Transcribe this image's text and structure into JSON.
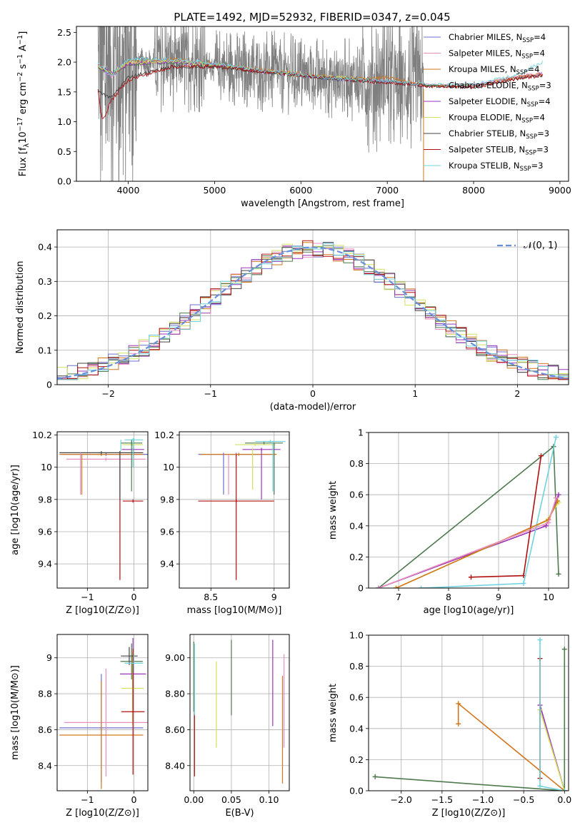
{
  "figure_title": "PLATE=1492, MJD=52932, FIBERID=0347, z=0.045",
  "colors": {
    "chabrier_miles": "#6f6fcf",
    "salpeter_miles": "#e88fc0",
    "kroupa_miles": "#d2771e",
    "chabrier_elodie": "#4e7a4e",
    "salpeter_elodie": "#9a34b8",
    "kroupa_elodie": "#d2e060",
    "chabrier_stelib": "#444444",
    "salpeter_stelib": "#b01010",
    "kroupa_stelib": "#6fd3dd",
    "data": "#7f7f7f",
    "normal": "#6a8fdc"
  },
  "chart_data": [
    {
      "type": "line",
      "panel": "spectrum",
      "xlabel": "wavelength [Angstrom, rest frame]",
      "ylabel": "Flux [f_λ 10^{-17} erg cm^{-2} s^{-1} A^{-1}]",
      "xlim": [
        3400,
        9100
      ],
      "ylim": [
        0,
        2.6
      ],
      "xticks": [
        4000,
        5000,
        6000,
        7000,
        8000,
        9000
      ],
      "yticks": [
        0.0,
        0.5,
        1.0,
        1.5,
        2.0,
        2.5
      ],
      "grid": false,
      "legend_position": "right",
      "legend": [
        {
          "name": "Chabrier MILES, N",
          "sub": "SSP",
          "tail": "=4",
          "color_key": "chabrier_miles"
        },
        {
          "name": "Salpeter MILES, N",
          "sub": "SSP",
          "tail": "=4",
          "color_key": "salpeter_miles"
        },
        {
          "name": "Kroupa MILES, N",
          "sub": "SSP",
          "tail": "=4",
          "color_key": "kroupa_miles"
        },
        {
          "name": "Chabrier ELODIE, N",
          "sub": "SSP",
          "tail": "=3",
          "color_key": "chabrier_elodie"
        },
        {
          "name": "Salpeter ELODIE, N",
          "sub": "SSP",
          "tail": "=4",
          "color_key": "salpeter_elodie"
        },
        {
          "name": "Kroupa ELODIE, N",
          "sub": "SSP",
          "tail": "=4",
          "color_key": "kroupa_elodie"
        },
        {
          "name": "Chabrier STELIB, N",
          "sub": "SSP",
          "tail": "=3",
          "color_key": "chabrier_stelib"
        },
        {
          "name": "Salpeter STELIB, N",
          "sub": "SSP",
          "tail": "=3",
          "color_key": "salpeter_stelib"
        },
        {
          "name": "Kroupa STELIB, N",
          "sub": "SSP",
          "tail": "=3",
          "color_key": "kroupa_stelib"
        }
      ],
      "data_range": [
        3650,
        7420
      ],
      "continuum": {
        "x": [
          3650,
          3800,
          4000,
          4200,
          4500,
          4800,
          5000,
          5200,
          5500,
          5800,
          6000,
          6200,
          6500,
          6800,
          7000,
          7200,
          7400
        ],
        "y": [
          1.85,
          1.85,
          1.95,
          2.0,
          2.0,
          2.0,
          1.92,
          1.88,
          1.85,
          1.82,
          1.78,
          1.75,
          1.72,
          1.68,
          1.7,
          1.6,
          1.55
        ]
      },
      "models": [
        {
          "key": "chabrier_miles",
          "x": [
            3650,
            3800,
            4000,
            4500,
            5000,
            5500,
            6000,
            6500,
            7000,
            7500,
            8000,
            8500,
            8800
          ],
          "y": [
            1.95,
            1.75,
            1.98,
            2.02,
            1.95,
            1.86,
            1.78,
            1.7,
            1.67,
            1.6,
            1.6,
            1.75,
            1.8
          ]
        },
        {
          "key": "salpeter_miles",
          "x": [
            3650,
            3800,
            4000,
            4500,
            5000,
            5500,
            6000,
            6500,
            7000,
            7500,
            8000,
            8500,
            8800
          ],
          "y": [
            1.96,
            1.76,
            1.97,
            2.03,
            1.96,
            1.87,
            1.79,
            1.71,
            1.68,
            1.61,
            1.61,
            1.76,
            1.81
          ]
        },
        {
          "key": "kroupa_miles",
          "x": [
            3650,
            3800,
            4000,
            4500,
            5000,
            5500,
            6000,
            6500,
            7000,
            7500,
            8000,
            8500,
            8800
          ],
          "y": [
            1.97,
            1.78,
            2.0,
            2.05,
            1.97,
            1.88,
            1.8,
            1.72,
            1.74,
            1.6,
            1.6,
            1.75,
            1.8
          ]
        },
        {
          "key": "chabrier_elodie",
          "x": [
            3650,
            3800,
            4000,
            4500,
            5000,
            5500,
            6000,
            6500,
            6800
          ],
          "y": [
            1.92,
            1.8,
            1.96,
            2.0,
            1.94,
            1.84,
            1.77,
            1.72,
            1.7
          ]
        },
        {
          "key": "salpeter_elodie",
          "x": [
            3650,
            3800,
            4000,
            4500,
            5000,
            5500,
            6000,
            6500,
            6800
          ],
          "y": [
            1.94,
            1.82,
            1.97,
            2.01,
            1.95,
            1.85,
            1.78,
            1.73,
            1.7
          ]
        },
        {
          "key": "kroupa_elodie",
          "x": [
            3650,
            3800,
            4000,
            4500,
            5000,
            5500,
            6000,
            6500,
            6800
          ],
          "y": [
            1.93,
            1.81,
            1.99,
            2.02,
            1.95,
            1.86,
            1.78,
            1.74,
            1.69
          ]
        },
        {
          "key": "chabrier_stelib",
          "x": [
            3650,
            3800,
            4000,
            4500,
            5000,
            5500,
            6000,
            6500,
            7000,
            7500,
            8000,
            8500,
            8800
          ],
          "y": [
            1.5,
            1.4,
            1.75,
            1.92,
            1.92,
            1.85,
            1.78,
            1.7,
            1.66,
            1.6,
            1.58,
            1.72,
            1.78
          ]
        },
        {
          "key": "salpeter_stelib",
          "x": [
            3650,
            3700,
            3800,
            4000,
            4500,
            5000,
            5500,
            6000,
            6500,
            7000,
            7500,
            8000,
            8500,
            8800
          ],
          "y": [
            1.55,
            1.0,
            1.35,
            1.7,
            1.92,
            1.93,
            1.85,
            1.78,
            1.71,
            1.66,
            1.6,
            1.58,
            1.72,
            1.78
          ]
        },
        {
          "key": "kroupa_stelib",
          "x": [
            3650,
            3800,
            4000,
            4500,
            5000,
            5500,
            6000,
            6500,
            7000,
            7500,
            8000,
            8500,
            8800
          ],
          "y": [
            1.98,
            1.78,
            2.05,
            2.05,
            1.98,
            1.87,
            1.79,
            1.72,
            1.68,
            1.62,
            1.62,
            1.78,
            2.0
          ]
        }
      ]
    },
    {
      "type": "histogram",
      "panel": "residuals",
      "xlabel": "(data-model)/error",
      "ylabel": "Normed distribution",
      "xlim": [
        -2.5,
        2.5
      ],
      "ylim": [
        0,
        0.45
      ],
      "xticks": [
        -2,
        -1,
        0,
        1,
        2
      ],
      "yticks": [
        0.0,
        0.1,
        0.2,
        0.3,
        0.4
      ],
      "grid": true,
      "legend_position": "top-right",
      "legend": [
        {
          "label": "𝒩(0, 1)",
          "style": "dashed",
          "color_key": "normal"
        }
      ],
      "bin_width": 0.1
    },
    {
      "type": "errorbar",
      "panel": "age_vs_Z",
      "xlabel": "Z [log10(Z/Z⊙)]",
      "ylabel": "age [log10(age/yr)]",
      "xlim": [
        -1.65,
        0.3
      ],
      "ylim": [
        9.25,
        10.22
      ],
      "xticks": [
        -1,
        0
      ],
      "yticks": [
        9.4,
        9.6,
        9.8,
        10.0,
        10.2
      ],
      "grid": true,
      "points": [
        {
          "key": "chabrier_miles",
          "x": -0.6,
          "xerr": 0.95,
          "y": 10.08,
          "yerr": 0.01
        },
        {
          "key": "salpeter_miles",
          "x": -0.6,
          "xerr": 0.85,
          "y": 10.05,
          "yerr": 0.01
        },
        {
          "key": "kroupa_miles",
          "x": -0.7,
          "xerr": 0.9,
          "y": 10.08,
          "yerr": 0.01
        },
        {
          "key": "chabrier_elodie",
          "x": -0.05,
          "xerr": 0.23,
          "y": 10.15,
          "yerr": 0.01
        },
        {
          "key": "salpeter_elodie",
          "x": -0.02,
          "xerr": 0.24,
          "y": 10.11,
          "yerr": 0.01
        },
        {
          "key": "kroupa_elodie",
          "x": -0.03,
          "xerr": 0.22,
          "y": 10.14,
          "yerr": 0.01
        },
        {
          "key": "chabrier_stelib",
          "x": -0.7,
          "xerr": 0.9,
          "y": 10.09,
          "yerr": 0.01
        },
        {
          "key": "salpeter_stelib",
          "x": -0.02,
          "xerr": 0.22,
          "y": 9.79,
          "yerr": 0.01
        },
        {
          "key": "kroupa_stelib",
          "x": 0.0,
          "xerr": 0.2,
          "y": 10.17,
          "yerr": 0.01
        }
      ]
    },
    {
      "type": "errorbar",
      "panel": "age_vs_mass",
      "xlabel": "mass [log10(M/M⊙)]",
      "ylabel": "",
      "xlim": [
        8.25,
        9.12
      ],
      "ylim": [
        9.25,
        10.22
      ],
      "xticks": [
        8.5,
        9.0
      ],
      "yticks": [
        9.4,
        9.6,
        9.8,
        10.0,
        10.2
      ],
      "grid": true,
      "points": [
        {
          "key": "chabrier_miles",
          "x": 8.7,
          "xerr": 0.3,
          "y": 10.08,
          "yerr": 0.01
        },
        {
          "key": "kroupa_miles",
          "x": 8.72,
          "xerr": 0.3,
          "y": 10.08,
          "yerr": 0.01
        },
        {
          "key": "chabrier_elodie",
          "x": 8.92,
          "xerr": 0.15,
          "y": 10.15,
          "yerr": 0.01
        },
        {
          "key": "salpeter_elodie",
          "x": 8.9,
          "xerr": 0.15,
          "y": 10.11,
          "yerr": 0.01
        },
        {
          "key": "kroupa_elodie",
          "x": 8.85,
          "xerr": 0.16,
          "y": 10.14,
          "yerr": 0.01
        },
        {
          "key": "salpeter_stelib",
          "x": 8.7,
          "xerr": 0.3,
          "y": 9.79,
          "yerr": 0.01
        },
        {
          "key": "kroupa_stelib",
          "x": 8.97,
          "xerr": 0.12,
          "y": 10.16,
          "yerr": 0.01
        }
      ]
    },
    {
      "type": "line",
      "panel": "mass_weight_vs_age",
      "xlabel": "age [log10(age/yr)]",
      "ylabel": "mass weight",
      "xlim": [
        6.4,
        10.4
      ],
      "ylim": [
        0,
        1
      ],
      "xticks": [
        7,
        8,
        9,
        10
      ],
      "yticks": [
        0.0,
        0.2,
        0.4,
        0.6,
        0.8,
        1.0
      ],
      "grid": true,
      "series": [
        {
          "key": "chabrier_elodie",
          "x": [
            6.6,
            10.1,
            10.2
          ],
          "y": [
            0.0,
            0.91,
            0.09
          ]
        },
        {
          "key": "salpeter_elodie",
          "x": [
            6.6,
            9.95,
            10.2
          ],
          "y": [
            0.0,
            0.4,
            0.6
          ]
        },
        {
          "key": "kroupa_elodie",
          "x": [
            6.95,
            9.95,
            10.2
          ],
          "y": [
            0.0,
            0.43,
            0.55
          ]
        },
        {
          "key": "salpeter_stelib",
          "x": [
            8.45,
            9.5,
            9.85
          ],
          "y": [
            0.07,
            0.08,
            0.85
          ]
        },
        {
          "key": "kroupa_stelib",
          "x": [
            7.45,
            9.5,
            10.15
          ],
          "y": [
            0.0,
            0.03,
            0.97
          ]
        },
        {
          "key": "kroupa_miles",
          "x": [
            6.95,
            10.0,
            10.18
          ],
          "y": [
            0.0,
            0.44,
            0.56
          ]
        },
        {
          "key": "salpeter_miles",
          "x": [
            6.6,
            10.0,
            10.15
          ],
          "y": [
            0.0,
            0.42,
            0.58
          ]
        }
      ]
    },
    {
      "type": "errorbar",
      "panel": "mass_vs_Z",
      "xlabel": "Z [log10(Z/Z⊙)]",
      "ylabel": "mass [log10(M/M⊙)]",
      "xlim": [
        -1.65,
        0.3
      ],
      "ylim": [
        8.26,
        9.13
      ],
      "xticks": [
        -1,
        0
      ],
      "yticks": [
        8.4,
        8.6,
        8.8,
        9.0
      ],
      "grid": true,
      "points": [
        {
          "key": "chabrier_miles",
          "x": -0.7,
          "xerr": 0.9,
          "y": 8.61,
          "yerr": 0.3
        },
        {
          "key": "salpeter_miles",
          "x": -0.6,
          "xerr": 0.9,
          "y": 8.64,
          "yerr": 0.3
        },
        {
          "key": "kroupa_miles",
          "x": -0.7,
          "xerr": 0.9,
          "y": 8.57,
          "yerr": 0.3
        },
        {
          "key": "chabrier_elodie",
          "x": -0.05,
          "xerr": 0.24,
          "y": 8.98,
          "yerr": 0.1
        },
        {
          "key": "salpeter_elodie",
          "x": -0.02,
          "xerr": 0.28,
          "y": 8.91,
          "yerr": 0.2
        },
        {
          "key": "kroupa_elodie",
          "x": -0.03,
          "xerr": 0.24,
          "y": 8.83,
          "yerr": 0.2
        },
        {
          "key": "chabrier_stelib",
          "x": -0.1,
          "xerr": 0.18,
          "y": 9.01,
          "yerr": 0.05
        },
        {
          "key": "salpeter_stelib",
          "x": -0.02,
          "xerr": 0.25,
          "y": 8.7,
          "yerr": 0.35
        },
        {
          "key": "kroupa_stelib",
          "x": 0.0,
          "xerr": 0.2,
          "y": 8.97,
          "yerr": 0.05
        }
      ]
    },
    {
      "type": "errorbar",
      "panel": "mass_vs_EBV",
      "xlabel": "E(B-V)",
      "ylabel": "",
      "xlim": [
        -0.005,
        0.127
      ],
      "ylim": [
        8.26,
        9.13
      ],
      "xticks": [
        0.0,
        0.05,
        0.1
      ],
      "yticks": [
        8.4,
        8.6,
        8.8,
        9.0
      ],
      "grid": true,
      "points": [
        {
          "key": "salpeter_stelib",
          "x": 0.001,
          "yerr": [
            8.34,
            8.69
          ]
        },
        {
          "key": "chabrier_elodie",
          "x": 0.0,
          "yerr": [
            8.7,
            9.09
          ]
        },
        {
          "key": "kroupa_elodie",
          "x": 0.03,
          "yerr": [
            8.5,
            8.98
          ]
        },
        {
          "key": "chabrier_elodie",
          "x": 0.05,
          "yerr": [
            8.68,
            9.1
          ]
        },
        {
          "key": "salpeter_elodie",
          "x": 0.105,
          "yerr": [
            8.62,
            9.1
          ]
        },
        {
          "key": "kroupa_miles",
          "x": 0.118,
          "yerr": [
            8.3,
            8.9
          ]
        },
        {
          "key": "salpeter_miles",
          "x": 0.12,
          "yerr": [
            8.5,
            9.02
          ]
        },
        {
          "key": "kroupa_stelib",
          "x": 0.001,
          "yerr": [
            8.68,
            9.08
          ]
        }
      ]
    },
    {
      "type": "line",
      "panel": "mass_weight_vs_Z",
      "xlabel": "Z [log10(Z/Z⊙)]",
      "ylabel": "mass weight",
      "xlim": [
        -2.4,
        0.05
      ],
      "ylim": [
        0,
        1
      ],
      "xticks": [
        -2.0,
        -1.5,
        -1.0,
        -0.5,
        0.0
      ],
      "yticks": [
        0.0,
        0.2,
        0.4,
        0.6,
        0.8,
        1.0
      ],
      "grid": true,
      "series": [
        {
          "key": "chabrier_elodie",
          "x": [
            -2.32,
            0.0,
            0.0
          ],
          "y": [
            0.09,
            0.0,
            0.91
          ]
        },
        {
          "key": "salpeter_elodie",
          "x": [
            -0.3,
            0.0
          ],
          "y": [
            0.55,
            0.0
          ]
        },
        {
          "key": "kroupa_elodie",
          "x": [
            -0.3,
            0.0
          ],
          "y": [
            0.52,
            0.0
          ]
        },
        {
          "key": "kroupa_miles",
          "x": [
            -1.3,
            -1.3,
            0.0
          ],
          "y": [
            0.43,
            0.56,
            0.0
          ]
        },
        {
          "key": "salpeter_stelib",
          "x": [
            -0.3,
            -0.3
          ],
          "y": [
            0.08,
            0.85
          ]
        },
        {
          "key": "kroupa_stelib",
          "x": [
            -0.3,
            -0.3,
            0.0
          ],
          "y": [
            0.97,
            0.03,
            0.0
          ]
        }
      ]
    }
  ]
}
